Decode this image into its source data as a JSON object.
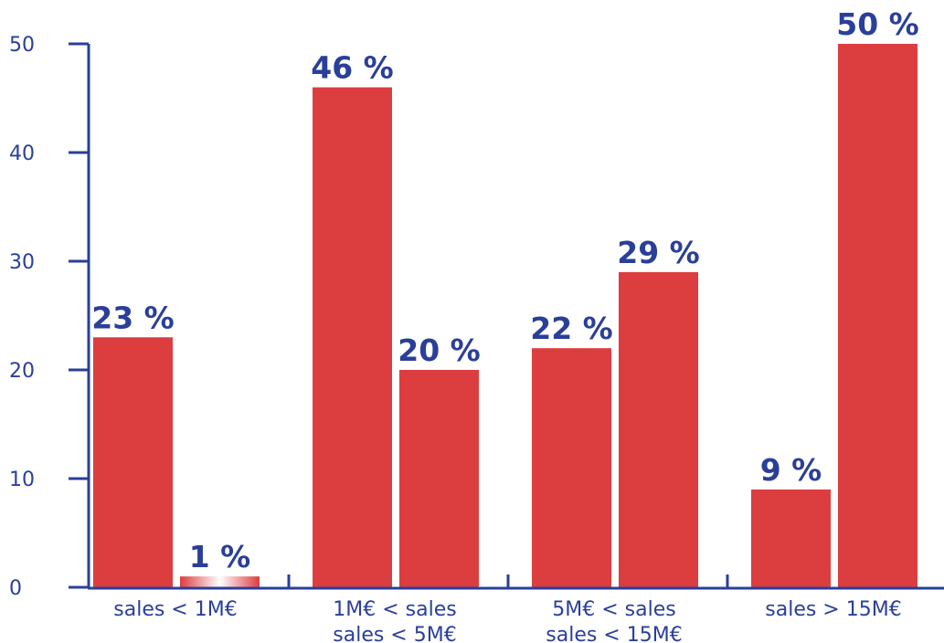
{
  "chart_data": {
    "type": "bar",
    "title": "",
    "xlabel": "",
    "ylabel": "",
    "ylim": [
      0,
      50
    ],
    "yticks": [
      0,
      10,
      20,
      30,
      40,
      50
    ],
    "categories": [
      [
        "sales < 1M€"
      ],
      [
        "1M€ < sales",
        "sales < 5M€"
      ],
      [
        "5M€ < sales",
        "sales < 15M€"
      ],
      [
        "sales > 15M€"
      ]
    ],
    "bars_per_category": 2,
    "values": [
      [
        23,
        1
      ],
      [
        46,
        20
      ],
      [
        22,
        29
      ],
      [
        9,
        50
      ]
    ],
    "data_labels": [
      [
        "23 %",
        "1 %"
      ],
      [
        "46 %",
        "20 %"
      ],
      [
        "22 %",
        "29 %"
      ],
      [
        "9 %",
        "50 %"
      ]
    ],
    "grid": false,
    "legend": "none",
    "colors": {
      "bar": "#dc3d3f",
      "bar_gradient_light": "#ffffff",
      "axis": "#2a3f99",
      "text": "#2a3f99"
    }
  }
}
